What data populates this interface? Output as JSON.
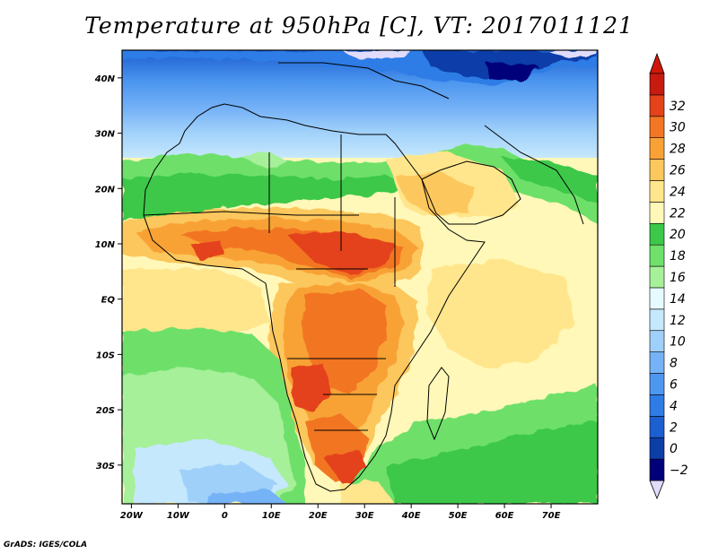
{
  "title": "Temperature at 950hPa [C], VT: 2017011121",
  "credit": "GrADS: IGES/COLA",
  "map": {
    "lon_range": [
      -22,
      80
    ],
    "lat_range": [
      -37,
      45
    ],
    "x_ticks": [
      {
        "lon": -20,
        "label": "20W"
      },
      {
        "lon": -10,
        "label": "10W"
      },
      {
        "lon": 0,
        "label": "0"
      },
      {
        "lon": 10,
        "label": "10E"
      },
      {
        "lon": 20,
        "label": "20E"
      },
      {
        "lon": 30,
        "label": "30E"
      },
      {
        "lon": 40,
        "label": "40E"
      },
      {
        "lon": 50,
        "label": "50E"
      },
      {
        "lon": 60,
        "label": "60E"
      },
      {
        "lon": 70,
        "label": "70E"
      }
    ],
    "y_ticks": [
      {
        "lat": 40,
        "label": "40N"
      },
      {
        "lat": 30,
        "label": "30N"
      },
      {
        "lat": 20,
        "label": "20N"
      },
      {
        "lat": 10,
        "label": "10N"
      },
      {
        "lat": 0,
        "label": "EQ"
      },
      {
        "lat": -10,
        "label": "10S"
      },
      {
        "lat": -20,
        "label": "20S"
      },
      {
        "lat": -30,
        "label": "30S"
      }
    ]
  },
  "colorbar": {
    "levels": [
      "-2",
      "0",
      "2",
      "4",
      "6",
      "8",
      "10",
      "12",
      "14",
      "16",
      "18",
      "20",
      "22",
      "24",
      "26",
      "28",
      "30",
      "32"
    ],
    "colors": [
      "#00007a",
      "#0c3ea8",
      "#1c5fd0",
      "#2f7ce6",
      "#4d97f0",
      "#76b2f6",
      "#9fd0fa",
      "#c5e8fd",
      "#e6fbff",
      "#a6f09a",
      "#6ee06b",
      "#3cc84a",
      "#fff8b8",
      "#ffe68c",
      "#fcc75c",
      "#f8a236",
      "#f27624",
      "#e4421a",
      "#c81b10"
    ],
    "low_color": "#e0dcfa",
    "high_color": "#d0180a"
  }
}
